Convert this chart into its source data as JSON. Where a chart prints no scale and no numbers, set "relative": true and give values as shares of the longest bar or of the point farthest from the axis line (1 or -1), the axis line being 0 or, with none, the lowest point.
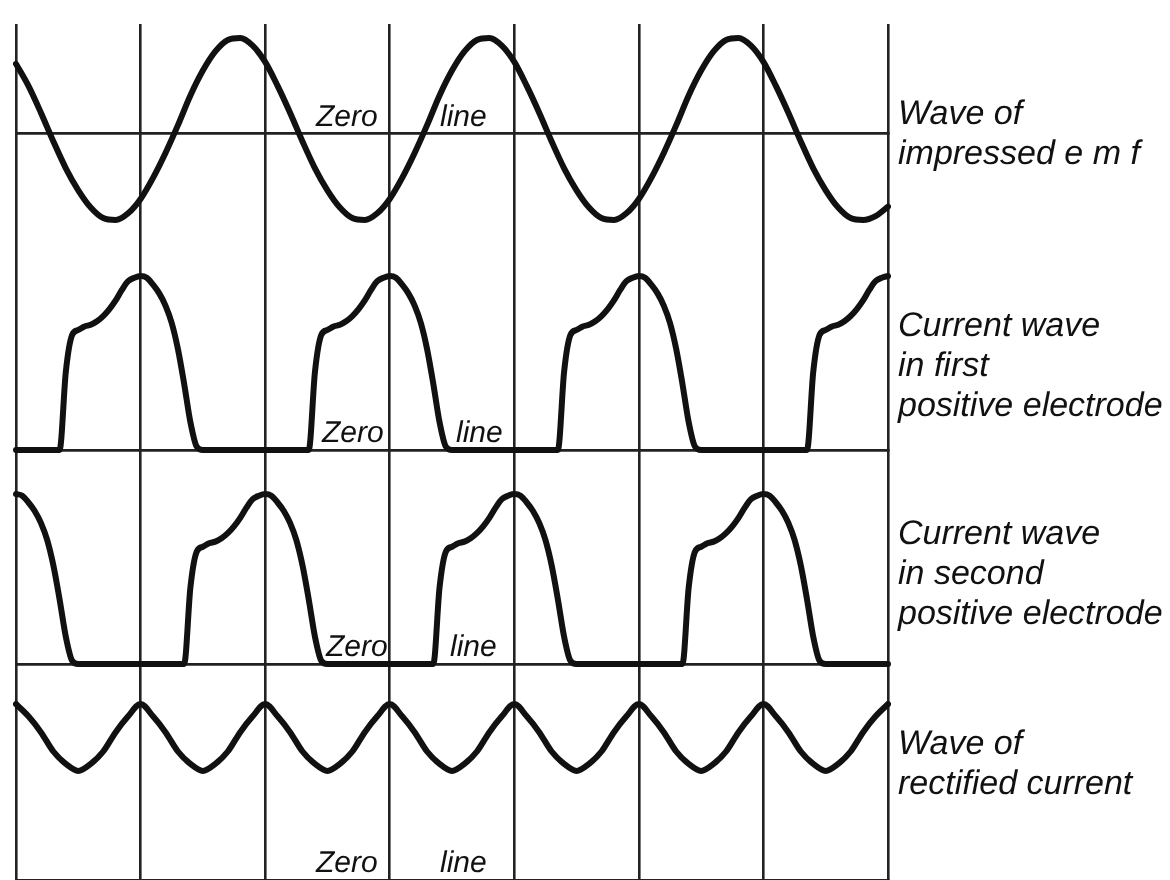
{
  "chart_data": [
    {
      "type": "line",
      "categories": [
        null,
        null,
        null,
        null,
        null,
        null,
        null,
        null,
        null,
        null,
        null,
        null,
        null,
        null,
        null,
        null,
        null,
        null,
        null,
        null,
        null,
        null,
        null,
        null,
        null,
        null,
        null,
        null,
        null,
        null,
        null,
        null,
        null,
        null,
        null,
        null,
        null,
        null,
        null,
        null,
        null,
        null,
        null,
        null,
        null,
        null,
        null,
        null,
        null,
        null,
        null,
        null,
        null,
        null,
        null,
        null,
        null,
        null,
        null,
        null,
        null,
        null,
        null,
        null,
        null,
        null,
        null,
        null,
        null,
        null,
        null
      ],
      "series": [
        {
          "name": "Wave of\nimpressed e m f",
          "color": "#111111",
          "values": [
            0.73,
            0.5,
            0.22,
            -0.08,
            -0.36,
            -0.59,
            -0.77,
            -0.88,
            -0.9,
            -0.83,
            -0.68,
            -0.46,
            -0.2,
            0.09,
            0.4,
            0.66,
            0.86,
            0.98,
            1,
            0.92,
            0.75,
            0.5,
            0.22,
            -0.08,
            -0.36,
            -0.59,
            -0.77,
            -0.88,
            -0.9,
            -0.83,
            -0.68,
            -0.46,
            -0.2,
            0.09,
            0.4,
            0.66,
            0.86,
            0.98,
            1,
            0.92,
            0.75,
            0.5,
            0.22,
            -0.08,
            -0.36,
            -0.59,
            -0.77,
            -0.88,
            -0.9,
            -0.83,
            -0.68,
            -0.46,
            -0.2,
            0.09,
            0.4,
            0.66,
            0.86,
            0.98,
            1,
            0.92,
            0.75,
            0.5,
            0.22,
            -0.08,
            -0.36,
            -0.59,
            -0.77,
            -0.88,
            -0.9,
            -0.86,
            -0.76
          ]
        }
      ],
      "relative": true,
      "grid": "x",
      "tick_labels": false,
      "marker": "none",
      "annotations": [
        "Zero line"
      ]
    },
    {
      "type": "line",
      "categories": [
        null,
        null,
        null,
        null,
        null,
        null,
        null,
        null,
        null,
        null,
        null,
        null,
        null,
        null,
        null,
        null,
        null,
        null,
        null,
        null,
        null,
        null,
        null,
        null,
        null,
        null,
        null,
        null,
        null,
        null,
        null,
        null,
        null,
        null,
        null,
        null,
        null,
        null,
        null,
        null,
        null,
        null,
        null,
        null,
        null,
        null,
        null,
        null,
        null,
        null,
        null,
        null,
        null,
        null,
        null,
        null,
        null,
        null,
        null,
        null,
        null,
        null,
        null,
        null,
        null,
        null,
        null,
        null,
        null,
        null,
        null,
        null,
        null,
        null,
        null,
        null,
        null,
        null,
        null,
        null,
        null,
        null,
        null,
        null,
        null,
        null,
        null,
        null,
        null,
        null,
        null,
        null,
        null,
        null,
        null,
        null,
        null,
        null,
        null,
        null,
        null,
        null,
        null,
        null,
        null,
        null,
        null,
        null,
        null,
        null,
        null,
        null,
        null,
        null,
        null,
        null,
        null,
        null,
        null,
        null,
        null,
        null,
        null,
        null,
        null,
        null,
        null,
        null,
        null,
        null,
        null,
        null,
        null,
        null,
        null,
        null,
        null,
        null,
        null,
        null,
        null
      ],
      "series": [
        {
          "name": "Current wave\nin first\npositive electrode",
          "color": "#111111",
          "values": [
            0,
            0,
            0,
            0,
            0,
            0,
            0,
            0,
            0.45,
            0.66,
            0.69,
            0.71,
            0.72,
            0.74,
            0.77,
            0.81,
            0.86,
            0.92,
            0.97,
            0.99,
            1,
            0.99,
            0.95,
            0.9,
            0.83,
            0.73,
            0.58,
            0.38,
            0.16,
            0.02,
            0,
            0,
            0,
            0,
            0,
            0,
            0,
            0,
            0,
            0,
            0,
            0,
            0,
            0,
            0,
            0,
            0,
            0,
            0.45,
            0.66,
            0.69,
            0.71,
            0.72,
            0.74,
            0.77,
            0.81,
            0.86,
            0.92,
            0.97,
            0.99,
            1,
            0.99,
            0.95,
            0.9,
            0.83,
            0.73,
            0.58,
            0.38,
            0.16,
            0.02,
            0,
            0,
            0,
            0,
            0,
            0,
            0,
            0,
            0,
            0,
            0,
            0,
            0,
            0,
            0,
            0,
            0,
            0,
            0.45,
            0.66,
            0.69,
            0.71,
            0.72,
            0.74,
            0.77,
            0.81,
            0.86,
            0.92,
            0.97,
            0.99,
            1,
            0.99,
            0.95,
            0.9,
            0.83,
            0.73,
            0.58,
            0.38,
            0.16,
            0.02,
            0,
            0,
            0,
            0,
            0,
            0,
            0,
            0,
            0,
            0,
            0,
            0,
            0,
            0,
            0,
            0,
            0,
            0,
            0.45,
            0.66,
            0.69,
            0.71,
            0.72,
            0.74,
            0.77,
            0.81,
            0.86,
            0.92,
            0.97,
            0.99,
            1
          ]
        }
      ],
      "relative": true,
      "grid": "x",
      "tick_labels": false,
      "marker": "none",
      "annotations": [
        "Zero line"
      ]
    },
    {
      "type": "line",
      "categories": [
        null,
        null,
        null,
        null,
        null,
        null,
        null,
        null,
        null,
        null,
        null,
        null,
        null,
        null,
        null,
        null,
        null,
        null,
        null,
        null,
        null,
        null,
        null,
        null,
        null,
        null,
        null,
        null,
        null,
        null,
        null,
        null,
        null,
        null,
        null,
        null,
        null,
        null,
        null,
        null,
        null,
        null,
        null,
        null,
        null,
        null,
        null,
        null,
        null,
        null,
        null,
        null,
        null,
        null,
        null,
        null,
        null,
        null,
        null,
        null,
        null,
        null,
        null,
        null,
        null,
        null,
        null,
        null,
        null,
        null,
        null,
        null,
        null,
        null,
        null,
        null,
        null,
        null,
        null,
        null,
        null,
        null,
        null,
        null,
        null,
        null,
        null,
        null,
        null,
        null,
        null,
        null,
        null,
        null,
        null,
        null,
        null,
        null,
        null,
        null,
        null,
        null,
        null,
        null,
        null,
        null,
        null,
        null,
        null,
        null,
        null,
        null,
        null,
        null,
        null,
        null,
        null,
        null,
        null,
        null,
        null,
        null,
        null,
        null,
        null,
        null,
        null,
        null,
        null,
        null,
        null,
        null,
        null,
        null,
        null,
        null,
        null,
        null,
        null,
        null,
        null
      ],
      "series": [
        {
          "name": "Current wave\nin second\npositive electrode",
          "color": "#111111",
          "values": [
            1,
            0.99,
            0.95,
            0.9,
            0.83,
            0.73,
            0.58,
            0.38,
            0.16,
            0.02,
            0,
            0,
            0,
            0,
            0,
            0,
            0,
            0,
            0,
            0,
            0,
            0,
            0,
            0,
            0,
            0,
            0,
            0,
            0.45,
            0.66,
            0.69,
            0.71,
            0.72,
            0.74,
            0.77,
            0.81,
            0.86,
            0.92,
            0.97,
            0.99,
            1,
            0.99,
            0.95,
            0.9,
            0.83,
            0.73,
            0.58,
            0.38,
            0.16,
            0.02,
            0,
            0,
            0,
            0,
            0,
            0,
            0,
            0,
            0,
            0,
            0,
            0,
            0,
            0,
            0,
            0,
            0,
            0,
            0.45,
            0.66,
            0.69,
            0.71,
            0.72,
            0.74,
            0.77,
            0.81,
            0.86,
            0.92,
            0.97,
            0.99,
            1,
            0.99,
            0.95,
            0.9,
            0.83,
            0.73,
            0.58,
            0.38,
            0.16,
            0.02,
            0,
            0,
            0,
            0,
            0,
            0,
            0,
            0,
            0,
            0,
            0,
            0,
            0,
            0,
            0,
            0,
            0,
            0,
            0.45,
            0.66,
            0.69,
            0.71,
            0.72,
            0.74,
            0.77,
            0.81,
            0.86,
            0.92,
            0.97,
            0.99,
            1,
            0.99,
            0.95,
            0.9,
            0.83,
            0.73,
            0.58,
            0.38,
            0.16,
            0.02,
            0,
            0,
            0,
            0,
            0,
            0,
            0,
            0,
            0,
            0,
            0
          ]
        }
      ],
      "relative": true,
      "grid": "x",
      "tick_labels": false,
      "marker": "none",
      "annotations": [
        "Zero line"
      ]
    },
    {
      "type": "line",
      "categories": [
        null,
        null,
        null,
        null,
        null,
        null,
        null,
        null,
        null,
        null,
        null,
        null,
        null,
        null,
        null,
        null,
        null,
        null,
        null,
        null,
        null,
        null,
        null,
        null,
        null,
        null,
        null,
        null,
        null,
        null,
        null,
        null,
        null,
        null,
        null,
        null,
        null,
        null,
        null,
        null,
        null,
        null,
        null,
        null,
        null,
        null,
        null,
        null,
        null,
        null,
        null,
        null,
        null,
        null,
        null,
        null,
        null,
        null,
        null,
        null,
        null,
        null,
        null,
        null,
        null,
        null,
        null,
        null,
        null,
        null,
        null
      ],
      "series": [
        {
          "name": "Wave of\nrectified current",
          "color": "#111111",
          "values": [
            1,
            0.93,
            0.84,
            0.73,
            0.66,
            0.62,
            0.66,
            0.73,
            0.84,
            0.93,
            1,
            0.93,
            0.84,
            0.73,
            0.66,
            0.62,
            0.66,
            0.73,
            0.84,
            0.93,
            1,
            0.93,
            0.84,
            0.73,
            0.66,
            0.62,
            0.66,
            0.73,
            0.84,
            0.93,
            1,
            0.93,
            0.84,
            0.73,
            0.66,
            0.62,
            0.66,
            0.73,
            0.84,
            0.93,
            1,
            0.93,
            0.84,
            0.73,
            0.66,
            0.62,
            0.66,
            0.73,
            0.84,
            0.93,
            1,
            0.93,
            0.84,
            0.73,
            0.66,
            0.62,
            0.66,
            0.73,
            0.84,
            0.93,
            1,
            0.93,
            0.84,
            0.73,
            0.66,
            0.62,
            0.66,
            0.73,
            0.84,
            0.93,
            1
          ]
        }
      ],
      "relative": true,
      "grid": "x",
      "tick_labels": false,
      "marker": "none",
      "annotations": [
        "Zero line"
      ]
    }
  ]
}
